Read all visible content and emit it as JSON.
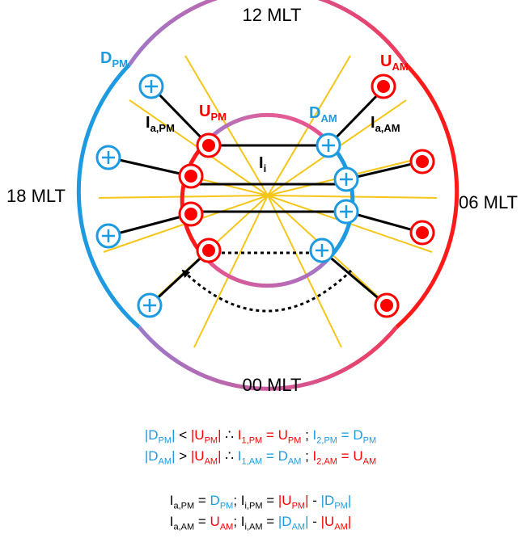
{
  "colors": {
    "red": "#ff0000",
    "blue": "#1e9be0",
    "purple": "#a078c8",
    "pink": "#e8508c",
    "yellow": "#f5c518",
    "black": "#000000"
  },
  "mlt_labels": {
    "top": "12 MLT",
    "left": "18 MLT",
    "right": "06 MLT",
    "bottom": "00 MLT"
  },
  "diagram_labels": {
    "d_pm": {
      "main": "D",
      "sub": "PM"
    },
    "u_am": {
      "main": "U",
      "sub": "AM"
    },
    "u_pm": {
      "main": "U",
      "sub": "PM"
    },
    "d_am": {
      "main": "D",
      "sub": "AM"
    },
    "i_a_pm": {
      "main": "I",
      "sub": "a,PM"
    },
    "i_a_am": {
      "main": "I",
      "sub": "a,AM"
    },
    "i_i": {
      "main": "I",
      "sub": "i"
    }
  },
  "equations": {
    "line1": [
      {
        "t": "|D",
        "c": "blue"
      },
      {
        "t": "PM",
        "c": "blue",
        "sub": true
      },
      {
        "t": "|",
        "c": "blue"
      },
      {
        "t": " < ",
        "c": "black"
      },
      {
        "t": "|U",
        "c": "red"
      },
      {
        "t": "PM",
        "c": "red",
        "sub": true
      },
      {
        "t": "|",
        "c": "red"
      },
      {
        "t": " ∴ ",
        "c": "black"
      },
      {
        "t": "I",
        "c": "red"
      },
      {
        "t": "1,PM",
        "c": "red",
        "sub": true
      },
      {
        "t": " = U",
        "c": "red"
      },
      {
        "t": "PM",
        "c": "red",
        "sub": true
      },
      {
        "t": " ; ",
        "c": "black"
      },
      {
        "t": "I",
        "c": "blue"
      },
      {
        "t": "2,PM",
        "c": "blue",
        "sub": true
      },
      {
        "t": " = D",
        "c": "blue"
      },
      {
        "t": "PM",
        "c": "blue",
        "sub": true
      }
    ],
    "line2": [
      {
        "t": "|D",
        "c": "blue"
      },
      {
        "t": "AM",
        "c": "blue",
        "sub": true
      },
      {
        "t": "|",
        "c": "blue"
      },
      {
        "t": " > ",
        "c": "black"
      },
      {
        "t": "|U",
        "c": "red"
      },
      {
        "t": "AM",
        "c": "red",
        "sub": true
      },
      {
        "t": "|",
        "c": "red"
      },
      {
        "t": " ∴ ",
        "c": "black"
      },
      {
        "t": "I",
        "c": "blue"
      },
      {
        "t": "1,AM",
        "c": "blue",
        "sub": true
      },
      {
        "t": " = D",
        "c": "blue"
      },
      {
        "t": "AM",
        "c": "blue",
        "sub": true
      },
      {
        "t": " ; ",
        "c": "black"
      },
      {
        "t": "I",
        "c": "red"
      },
      {
        "t": "2,AM",
        "c": "red",
        "sub": true
      },
      {
        "t": " = U",
        "c": "red"
      },
      {
        "t": "AM",
        "c": "red",
        "sub": true
      }
    ],
    "line3": [
      {
        "t": "I",
        "c": "black"
      },
      {
        "t": "a,PM",
        "c": "black",
        "sub": true
      },
      {
        "t": " = ",
        "c": "black"
      },
      {
        "t": "D",
        "c": "blue"
      },
      {
        "t": "PM",
        "c": "blue",
        "sub": true
      },
      {
        "t": "; I",
        "c": "black"
      },
      {
        "t": "i,PM",
        "c": "black",
        "sub": true
      },
      {
        "t": " = ",
        "c": "black"
      },
      {
        "t": "|U",
        "c": "red"
      },
      {
        "t": "PM",
        "c": "red",
        "sub": true
      },
      {
        "t": "|",
        "c": "red"
      },
      {
        "t": " - ",
        "c": "black"
      },
      {
        "t": "|D",
        "c": "blue"
      },
      {
        "t": "PM",
        "c": "blue",
        "sub": true
      },
      {
        "t": "|",
        "c": "blue"
      }
    ],
    "line4": [
      {
        "t": "I",
        "c": "black"
      },
      {
        "t": "a,AM",
        "c": "black",
        "sub": true
      },
      {
        "t": " = ",
        "c": "black"
      },
      {
        "t": "U",
        "c": "red"
      },
      {
        "t": "AM",
        "c": "red",
        "sub": true
      },
      {
        "t": "; I",
        "c": "black"
      },
      {
        "t": "i,AM",
        "c": "black",
        "sub": true
      },
      {
        "t": " = ",
        "c": "black"
      },
      {
        "t": "|D",
        "c": "blue"
      },
      {
        "t": "AM",
        "c": "blue",
        "sub": true
      },
      {
        "t": "|",
        "c": "blue"
      },
      {
        "t": " - ",
        "c": "black"
      },
      {
        "t": "|U",
        "c": "red"
      },
      {
        "t": "AM",
        "c": "red",
        "sub": true
      },
      {
        "t": "|",
        "c": "red"
      }
    ]
  }
}
